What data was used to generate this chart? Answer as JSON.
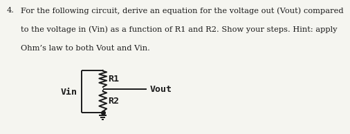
{
  "title_number": "4.",
  "title_text_lines": [
    "For the following circuit, derive an equation for the voltage out (Vout) compared",
    "to the voltage in (Vin) as a function of R1 and R2. Show your steps. Hint: apply",
    "Ohm’s law to both Vout and Vin."
  ],
  "label_vin": "Vin",
  "label_r1": "R1",
  "label_r2": "R2",
  "label_vout": "Vout",
  "text_color": "#1a1a1a",
  "bg_color": "#f5f5f0",
  "font_size_body": 8.2,
  "font_size_labels": 9.5
}
